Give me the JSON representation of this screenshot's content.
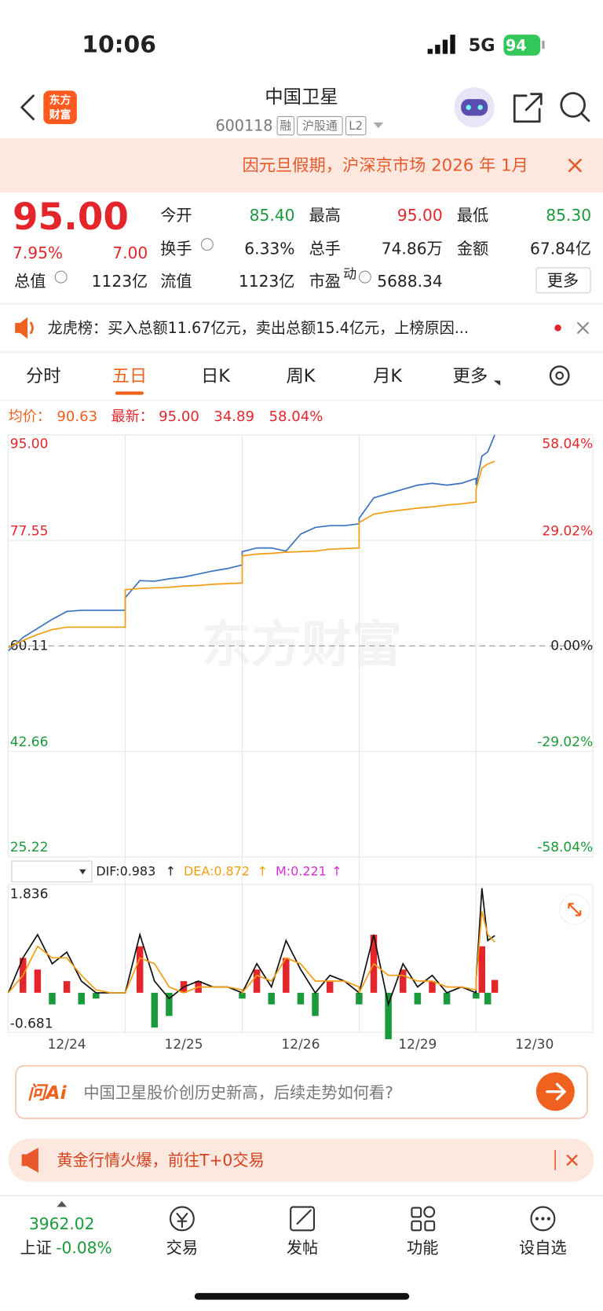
{
  "status": {
    "time": "10:06",
    "network": "5G",
    "battery": "94"
  },
  "header": {
    "logo": [
      "东方",
      "财富"
    ],
    "title": "中国卫星",
    "code": "600118",
    "tags": [
      "融",
      "沪股通",
      "L2"
    ]
  },
  "notice": "因元旦假期，沪深京市场 2026 年 1月",
  "quote": {
    "price": "95.00",
    "change_pct": "7.95%",
    "change": "7.00",
    "fields": [
      {
        "label": "今开",
        "value": "85.40"
      },
      {
        "label": "最高",
        "value": "95.00"
      },
      {
        "label": "最低",
        "value": "85.30"
      },
      {
        "label": "换手",
        "value": "6.33%"
      },
      {
        "label": "总手",
        "value": "74.86万"
      },
      {
        "label": "金额",
        "value": "67.84亿"
      },
      {
        "label": "总值",
        "value": "1123亿"
      },
      {
        "label": "流值",
        "value": "1123亿"
      },
      {
        "label": "市盈",
        "sup": "动",
        "value": "5688.34"
      }
    ],
    "more": "更多"
  },
  "lhb": "龙虎榜：买入总额11.67亿元，卖出总额15.4亿元，上榜原因...",
  "tabs": [
    "分时",
    "五日",
    "日K",
    "周K",
    "月K",
    "更多"
  ],
  "watermark": "东方财富",
  "chart_data": [
    {
      "type": "line",
      "legend_texts": [
        "均价：",
        "90.63",
        "最新：",
        "95.00",
        "34.89",
        "58.04%"
      ],
      "categories": [
        "12/24",
        "12/25",
        "12/26",
        "12/29",
        "12/30"
      ],
      "xlim": [
        0,
        5
      ],
      "x": [
        0,
        0.125,
        0.25,
        0.375,
        0.5,
        0.625,
        0.75,
        0.875,
        1,
        1,
        1.125,
        1.25,
        1.375,
        1.5,
        1.625,
        1.75,
        1.875,
        2,
        2,
        2.125,
        2.25,
        2.375,
        2.5,
        2.625,
        2.75,
        2.875,
        3,
        3,
        3.125,
        3.25,
        3.375,
        3.5,
        3.625,
        3.75,
        3.875,
        4,
        4,
        4.05,
        4.1,
        4.16
      ],
      "ylim": [
        25.22,
        95
      ],
      "yticks": [
        {
          "value": 95,
          "label": "95.00"
        },
        77.55,
        60.11,
        42.66,
        25.22
      ],
      "y2lim": [
        -58.04,
        58.04
      ],
      "y2ticks": [
        {
          "value": 58.04,
          "label": "58.04%"
        },
        {
          "value": 29.02,
          "label": "29.02%"
        },
        {
          "value": 0,
          "label": "0.00%"
        },
        {
          "value": -29.02,
          "label": "-29.02%"
        },
        {
          "value": -58.04,
          "label": "-58.04%"
        }
      ],
      "series": [
        {
          "color": "#3a73c2",
          "values": [
            59.3,
            61.5,
            63,
            64.5,
            65.8,
            66,
            66,
            66,
            66,
            68.1,
            70.9,
            70.8,
            71.2,
            71.5,
            72,
            72.5,
            72.9,
            73.5,
            75.7,
            76.3,
            76.3,
            75.8,
            78.6,
            79.7,
            80,
            80,
            80.3,
            81.2,
            84.6,
            85.3,
            86,
            86.7,
            87,
            86.7,
            87,
            87.8,
            86.7,
            91.5,
            92.2,
            95
          ]
        },
        {
          "color": "#f39c12",
          "values": [
            59.8,
            61,
            62,
            62.8,
            63.2,
            63.2,
            63.2,
            63.2,
            63.2,
            69.4,
            69.6,
            69.7,
            69.8,
            70,
            70.1,
            70.3,
            70.4,
            70.5,
            75,
            75.3,
            75.4,
            75.6,
            75.7,
            75.8,
            76.1,
            76.2,
            76.3,
            80.5,
            81.9,
            82.3,
            82.6,
            82.9,
            83.1,
            83.4,
            83.6,
            83.9,
            86,
            89.5,
            90.2,
            90.63
          ]
        }
      ]
    },
    {
      "type": "macd",
      "title": "MACD",
      "xlim": [
        0,
        5
      ],
      "x": [
        0,
        0.125,
        0.25,
        0.375,
        0.5,
        0.625,
        0.75,
        0.875,
        1,
        1,
        1.125,
        1.25,
        1.375,
        1.5,
        1.625,
        1.75,
        1.875,
        2,
        2,
        2.125,
        2.25,
        2.375,
        2.5,
        2.625,
        2.75,
        2.875,
        3,
        3,
        3.125,
        3.25,
        3.375,
        3.5,
        3.625,
        3.75,
        3.875,
        4,
        4,
        4.05,
        4.1,
        4.16
      ],
      "ylim": [
        -0.681,
        1.836
      ],
      "yticks": [
        1.836,
        -0.681
      ],
      "series": [
        {
          "legend": "DIF:0.983",
          "color": "#111111",
          "kind": "line",
          "values": [
            0,
            0.6,
            1.0,
            0.5,
            0.7,
            0.2,
            0,
            0,
            0,
            0,
            1.0,
            0.2,
            -0.1,
            0.1,
            0.2,
            0.1,
            0.1,
            0,
            0,
            0.5,
            0.1,
            0.9,
            0.4,
            0,
            0.3,
            0.2,
            0,
            0,
            1.0,
            -0.2,
            0.5,
            0.1,
            0.3,
            0,
            0.1,
            0,
            0.2,
            1.8,
            0.9,
            0.983
          ]
        },
        {
          "legend": "DEA:0.872",
          "color": "#f39c12",
          "kind": "line",
          "values": [
            0,
            0.3,
            0.8,
            0.6,
            0.6,
            0.3,
            0.05,
            0,
            0,
            0,
            0.6,
            0.5,
            0.1,
            0,
            0.1,
            0.1,
            0.1,
            0.05,
            0,
            0.3,
            0.2,
            0.6,
            0.5,
            0.2,
            0.2,
            0.2,
            0.1,
            0,
            0.5,
            0.3,
            0.3,
            0.2,
            0.2,
            0.1,
            0.1,
            0.05,
            0.2,
            1.4,
            1.0,
            0.872
          ]
        },
        {
          "legend": "M:0.221",
          "color": "#d62bd6",
          "kind": "bar",
          "values": [
            0,
            0.6,
            0.4,
            -0.2,
            0.2,
            -0.2,
            -0.1,
            0,
            0,
            0,
            0.8,
            -0.6,
            -0.4,
            0.2,
            0.2,
            0,
            0,
            -0.1,
            0,
            0.4,
            -0.2,
            0.6,
            -0.2,
            -0.4,
            0.2,
            0,
            -0.2,
            0,
            1.0,
            -0.8,
            0.4,
            -0.2,
            0.2,
            -0.2,
            0,
            -0.1,
            0,
            0.8,
            -0.2,
            0.221
          ]
        }
      ]
    }
  ],
  "ai": {
    "logo": "问Ai",
    "prompt": "中国卫星股价创历史新高，后续走势如何看?"
  },
  "banner": "黄金行情火爆，前往T+0交易",
  "bottom_nav": {
    "index_value": "3962.02",
    "index_name": "上证",
    "index_change": "-0.08%",
    "items": [
      "交易",
      "发帖",
      "功能",
      "设自选"
    ]
  }
}
